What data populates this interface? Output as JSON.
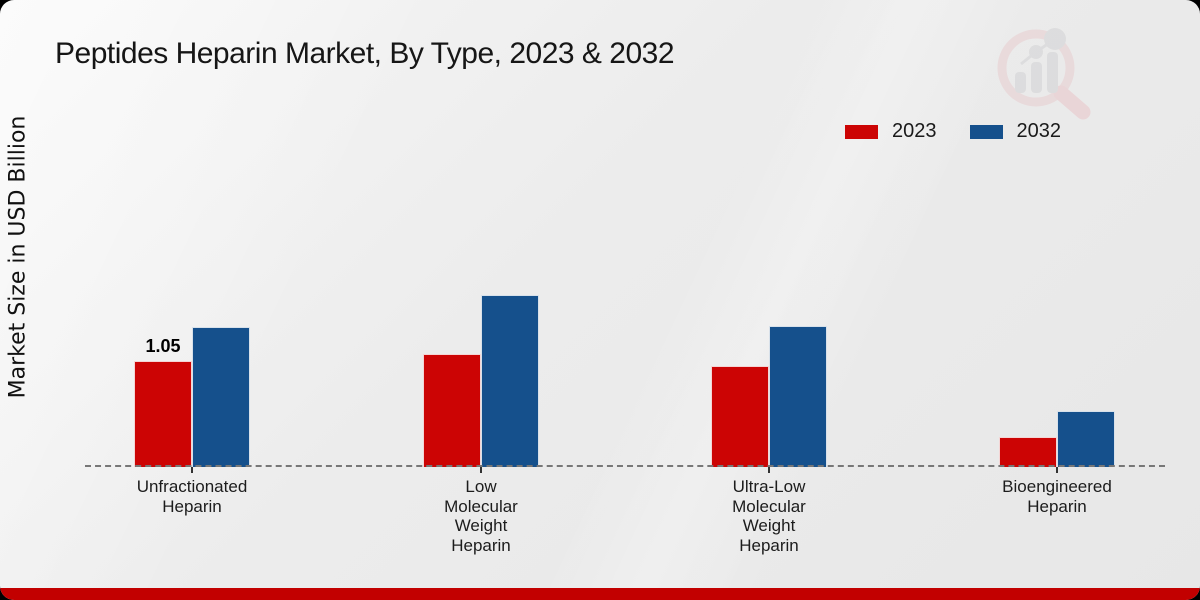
{
  "page": {
    "title": "Peptides Heparin Market, By Type, 2023 & 2032"
  },
  "colors": {
    "series_2023": "#cc0404",
    "series_2032": "#15508c",
    "bottom_strip": "#c20000",
    "baseline": "#777777",
    "background": "#ececec",
    "watermark_pink": "#e8cdcf",
    "watermark_gray": "#d2d2d4"
  },
  "chart_data": {
    "type": "bar",
    "title": "Peptides Heparin Market, By Type, 2023 & 2032",
    "xlabel": "",
    "ylabel": "Market Size in USD Billion",
    "ylim": [
      0,
      1.8
    ],
    "grid": false,
    "legend_position": "top-right",
    "baseline_style": "dashed",
    "categories": [
      [
        "Unfractionated",
        "Heparin"
      ],
      [
        "Low",
        "Molecular",
        "Weight",
        "Heparin"
      ],
      [
        "Ultra-Low",
        "Molecular",
        "Weight",
        "Heparin"
      ],
      [
        "Bioengineered",
        "Heparin"
      ]
    ],
    "series": [
      {
        "name": "2023",
        "color": "#cc0404",
        "values": [
          1.05,
          1.12,
          1.0,
          0.3
        ]
      },
      {
        "name": "2032",
        "color": "#15508c",
        "values": [
          1.39,
          1.7,
          1.4,
          0.55
        ]
      }
    ],
    "annotations": [
      {
        "series": "2023",
        "category_index": 0,
        "text": "1.05"
      }
    ]
  }
}
